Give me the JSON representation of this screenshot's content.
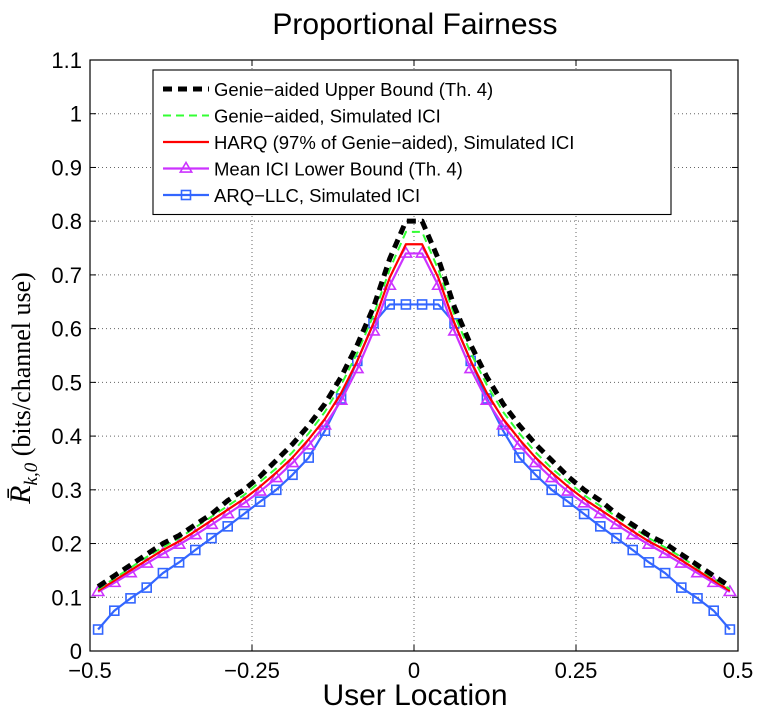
{
  "chart_data": {
    "type": "line",
    "title": "Proportional Fairness",
    "xlabel": "User Location",
    "ylabel": "R̄k,0 (bits/channel use)",
    "ylabel_parts": {
      "symbol": "R̄",
      "subscript": "k,0",
      "rest": " (bits/channel use)"
    },
    "xlim": [
      -0.5,
      0.5
    ],
    "ylim": [
      0,
      1.1
    ],
    "xticks": [
      -0.5,
      -0.25,
      0,
      0.25,
      0.5
    ],
    "xtick_labels": [
      "−0.5",
      "−0.25",
      "0",
      "0.25",
      "0.5"
    ],
    "yticks": [
      0,
      0.1,
      0.2,
      0.3,
      0.4,
      0.5,
      0.6,
      0.7,
      0.8,
      0.9,
      1,
      1.1
    ],
    "ytick_labels": [
      "0",
      "0.1",
      "0.2",
      "0.3",
      "0.4",
      "0.5",
      "0.6",
      "0.7",
      "0.8",
      "0.9",
      "1",
      "1.1"
    ],
    "grid": true,
    "legend_position": "top-center",
    "x": [
      -0.4875,
      -0.4625,
      -0.4375,
      -0.4125,
      -0.3875,
      -0.3625,
      -0.3375,
      -0.3125,
      -0.2875,
      -0.2625,
      -0.2375,
      -0.2125,
      -0.1875,
      -0.1625,
      -0.1375,
      -0.1125,
      -0.0875,
      -0.0625,
      -0.0375,
      -0.0125,
      0.0125,
      0.0375,
      0.0625,
      0.0875,
      0.1125,
      0.1375,
      0.1625,
      0.1875,
      0.2125,
      0.2375,
      0.2625,
      0.2875,
      0.3125,
      0.3375,
      0.3625,
      0.3875,
      0.4125,
      0.4375,
      0.4625,
      0.4875
    ],
    "series": [
      {
        "name": "Genie−aided Upper Bound (Th. 4)",
        "color": "#000000",
        "line_style": "dashed-thick",
        "marker": "none",
        "values": [
          0.12,
          0.14,
          0.16,
          0.18,
          0.2,
          0.215,
          0.235,
          0.255,
          0.28,
          0.3,
          0.325,
          0.355,
          0.385,
          0.42,
          0.46,
          0.51,
          0.57,
          0.64,
          0.73,
          0.8,
          0.8,
          0.73,
          0.64,
          0.57,
          0.51,
          0.46,
          0.42,
          0.385,
          0.355,
          0.325,
          0.3,
          0.28,
          0.255,
          0.235,
          0.215,
          0.2,
          0.18,
          0.16,
          0.14,
          0.12
        ]
      },
      {
        "name": "Genie−aided, Simulated ICI",
        "color": "#33ff33",
        "line_style": "dashed",
        "marker": "none",
        "values": [
          0.115,
          0.135,
          0.155,
          0.175,
          0.193,
          0.21,
          0.23,
          0.25,
          0.27,
          0.29,
          0.315,
          0.34,
          0.37,
          0.405,
          0.445,
          0.495,
          0.555,
          0.625,
          0.71,
          0.78,
          0.78,
          0.71,
          0.625,
          0.555,
          0.495,
          0.445,
          0.405,
          0.37,
          0.34,
          0.315,
          0.29,
          0.27,
          0.25,
          0.23,
          0.21,
          0.193,
          0.175,
          0.155,
          0.135,
          0.115
        ]
      },
      {
        "name": "HARQ (97% of Genie−aided), Simulated ICI",
        "color": "#ff0000",
        "line_style": "solid",
        "marker": "none",
        "values": [
          0.112,
          0.131,
          0.15,
          0.169,
          0.188,
          0.204,
          0.223,
          0.243,
          0.263,
          0.283,
          0.306,
          0.332,
          0.36,
          0.394,
          0.432,
          0.48,
          0.54,
          0.61,
          0.695,
          0.757,
          0.757,
          0.695,
          0.61,
          0.54,
          0.48,
          0.432,
          0.394,
          0.36,
          0.332,
          0.306,
          0.283,
          0.263,
          0.243,
          0.223,
          0.204,
          0.188,
          0.169,
          0.15,
          0.131,
          0.112
        ]
      },
      {
        "name": "Mean ICI Lower Bound (Th. 4)",
        "color": "#cc33ff",
        "line_style": "solid",
        "marker": "triangle",
        "values": [
          0.11,
          0.127,
          0.145,
          0.163,
          0.181,
          0.198,
          0.216,
          0.235,
          0.255,
          0.275,
          0.297,
          0.322,
          0.35,
          0.383,
          0.42,
          0.466,
          0.525,
          0.595,
          0.68,
          0.74,
          0.74,
          0.68,
          0.595,
          0.525,
          0.466,
          0.42,
          0.383,
          0.35,
          0.322,
          0.297,
          0.275,
          0.255,
          0.235,
          0.216,
          0.198,
          0.181,
          0.163,
          0.145,
          0.127,
          0.11
        ]
      },
      {
        "name": "ARQ−LLC, Simulated ICI",
        "color": "#3366ff",
        "line_style": "solid",
        "marker": "square",
        "values": [
          0.04,
          0.075,
          0.098,
          0.118,
          0.145,
          0.165,
          0.188,
          0.21,
          0.232,
          0.255,
          0.278,
          0.3,
          0.328,
          0.36,
          0.41,
          0.47,
          0.54,
          0.61,
          0.645,
          0.645,
          0.645,
          0.645,
          0.61,
          0.54,
          0.47,
          0.41,
          0.36,
          0.328,
          0.3,
          0.278,
          0.255,
          0.232,
          0.21,
          0.188,
          0.165,
          0.145,
          0.118,
          0.098,
          0.075,
          0.04
        ]
      }
    ]
  }
}
